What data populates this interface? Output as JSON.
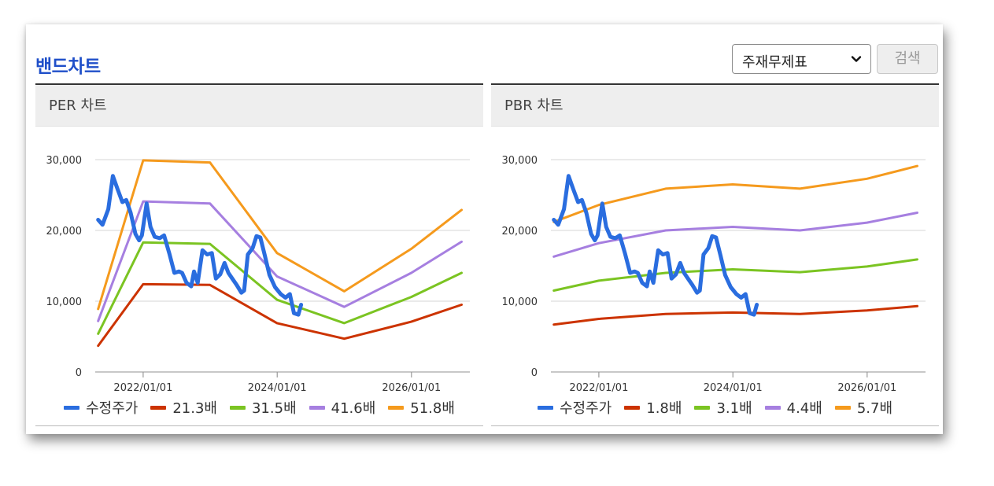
{
  "header": {
    "title": "밴드차트",
    "select_value": "주재무제표",
    "search_label": "검색"
  },
  "colors": {
    "title": "#1f4fc9",
    "price": "#2a6ddf",
    "band1": "#cc3300",
    "band2": "#7bc422",
    "band3": "#a67fe0",
    "band4": "#f59a1d"
  },
  "chart_data": [
    {
      "type": "line",
      "title": "PER 차트",
      "ylim": [
        0,
        30000
      ],
      "yticks": [
        0,
        10000,
        20000,
        30000
      ],
      "ytick_labels": [
        "0",
        "10,000",
        "20,000",
        "30,000"
      ],
      "xlim": [
        "2021-04-15",
        "2026-11-15"
      ],
      "xticks": [
        "2022-01-01",
        "2024-01-01",
        "2026-01-01"
      ],
      "xtick_labels": [
        "2022/01/01",
        "2024/01/01",
        "2026/01/01"
      ],
      "grid": true,
      "legend": "bottom",
      "series": [
        {
          "name": "수정주가",
          "color": "#2a6ddf",
          "width": 5,
          "points": [
            [
              "2021-05-01",
              21500
            ],
            [
              "2021-05-25",
              20800
            ],
            [
              "2021-06-25",
              23000
            ],
            [
              "2021-07-20",
              27700
            ],
            [
              "2021-08-15",
              25800
            ],
            [
              "2021-09-10",
              24000
            ],
            [
              "2021-10-01",
              24300
            ],
            [
              "2021-10-25",
              22500
            ],
            [
              "2021-11-20",
              19500
            ],
            [
              "2021-12-10",
              18600
            ],
            [
              "2021-12-25",
              19300
            ],
            [
              "2022-01-20",
              23800
            ],
            [
              "2022-02-10",
              20500
            ],
            [
              "2022-03-05",
              19100
            ],
            [
              "2022-04-01",
              18900
            ],
            [
              "2022-04-25",
              19300
            ],
            [
              "2022-05-25",
              16600
            ],
            [
              "2022-06-20",
              14000
            ],
            [
              "2022-07-15",
              14200
            ],
            [
              "2022-08-01",
              14000
            ],
            [
              "2022-08-25",
              12600
            ],
            [
              "2022-09-20",
              12100
            ],
            [
              "2022-10-05",
              14200
            ],
            [
              "2022-10-25",
              12600
            ],
            [
              "2022-11-20",
              17200
            ],
            [
              "2022-12-15",
              16600
            ],
            [
              "2023-01-10",
              16800
            ],
            [
              "2023-02-01",
              13200
            ],
            [
              "2023-02-25",
              13800
            ],
            [
              "2023-03-20",
              15400
            ],
            [
              "2023-04-10",
              14000
            ],
            [
              "2023-05-01",
              13200
            ],
            [
              "2023-05-25",
              12300
            ],
            [
              "2023-06-20",
              11200
            ],
            [
              "2023-07-05",
              11500
            ],
            [
              "2023-07-25",
              16600
            ],
            [
              "2023-08-20",
              17500
            ],
            [
              "2023-09-10",
              19200
            ],
            [
              "2023-10-01",
              19000
            ],
            [
              "2023-10-25",
              16500
            ],
            [
              "2023-11-20",
              13700
            ],
            [
              "2023-12-20",
              12000
            ],
            [
              "2024-01-20",
              11000
            ],
            [
              "2024-02-15",
              10500
            ],
            [
              "2024-03-10",
              11000
            ],
            [
              "2024-04-01",
              8300
            ],
            [
              "2024-04-25",
              8100
            ],
            [
              "2024-05-10",
              9500
            ]
          ]
        },
        {
          "name": "21.3배",
          "color": "#cc3300",
          "width": 3,
          "points": [
            [
              "2021-05-01",
              3700
            ],
            [
              "2022-01-01",
              12400
            ],
            [
              "2022-12-31",
              12300
            ],
            [
              "2023-12-31",
              6900
            ],
            [
              "2024-12-31",
              4700
            ],
            [
              "2025-12-31",
              7100
            ],
            [
              "2026-10-01",
              9500
            ]
          ]
        },
        {
          "name": "31.5배",
          "color": "#7bc422",
          "width": 3,
          "points": [
            [
              "2021-05-01",
              5400
            ],
            [
              "2022-01-01",
              18300
            ],
            [
              "2022-12-31",
              18100
            ],
            [
              "2023-12-31",
              10200
            ],
            [
              "2024-12-31",
              6900
            ],
            [
              "2025-12-31",
              10600
            ],
            [
              "2026-10-01",
              14000
            ]
          ]
        },
        {
          "name": "41.6배",
          "color": "#a67fe0",
          "width": 3,
          "points": [
            [
              "2021-05-01",
              7200
            ],
            [
              "2022-01-01",
              24100
            ],
            [
              "2022-12-31",
              23800
            ],
            [
              "2023-12-31",
              13500
            ],
            [
              "2024-12-31",
              9200
            ],
            [
              "2025-12-31",
              14000
            ],
            [
              "2026-10-01",
              18400
            ]
          ]
        },
        {
          "name": "51.8배",
          "color": "#f59a1d",
          "width": 3,
          "points": [
            [
              "2021-05-01",
              8900
            ],
            [
              "2022-01-01",
              29900
            ],
            [
              "2022-12-31",
              29600
            ],
            [
              "2023-12-31",
              16800
            ],
            [
              "2024-12-31",
              11400
            ],
            [
              "2025-12-31",
              17400
            ],
            [
              "2026-10-01",
              22900
            ]
          ]
        }
      ]
    },
    {
      "type": "line",
      "title": "PBR 차트",
      "ylim": [
        0,
        30000
      ],
      "yticks": [
        0,
        10000,
        20000,
        30000
      ],
      "ytick_labels": [
        "0",
        "10,000",
        "20,000",
        "30,000"
      ],
      "xlim": [
        "2021-04-15",
        "2026-11-15"
      ],
      "xticks": [
        "2022-01-01",
        "2024-01-01",
        "2026-01-01"
      ],
      "xtick_labels": [
        "2022/01/01",
        "2024/01/01",
        "2026/01/01"
      ],
      "grid": true,
      "legend": "bottom",
      "series": [
        {
          "name": "수정주가",
          "color": "#2a6ddf",
          "width": 5,
          "points": [
            [
              "2021-05-01",
              21500
            ],
            [
              "2021-05-25",
              20800
            ],
            [
              "2021-06-25",
              23000
            ],
            [
              "2021-07-20",
              27700
            ],
            [
              "2021-08-15",
              25800
            ],
            [
              "2021-09-10",
              24000
            ],
            [
              "2021-10-01",
              24300
            ],
            [
              "2021-10-25",
              22500
            ],
            [
              "2021-11-20",
              19500
            ],
            [
              "2021-12-10",
              18600
            ],
            [
              "2021-12-25",
              19300
            ],
            [
              "2022-01-20",
              23800
            ],
            [
              "2022-02-10",
              20500
            ],
            [
              "2022-03-05",
              19100
            ],
            [
              "2022-04-01",
              18900
            ],
            [
              "2022-04-25",
              19300
            ],
            [
              "2022-05-25",
              16600
            ],
            [
              "2022-06-20",
              14000
            ],
            [
              "2022-07-15",
              14200
            ],
            [
              "2022-08-01",
              14000
            ],
            [
              "2022-08-25",
              12600
            ],
            [
              "2022-09-20",
              12100
            ],
            [
              "2022-10-05",
              14200
            ],
            [
              "2022-10-25",
              12600
            ],
            [
              "2022-11-20",
              17200
            ],
            [
              "2022-12-15",
              16600
            ],
            [
              "2023-01-10",
              16800
            ],
            [
              "2023-02-01",
              13200
            ],
            [
              "2023-02-25",
              13800
            ],
            [
              "2023-03-20",
              15400
            ],
            [
              "2023-04-10",
              14000
            ],
            [
              "2023-05-01",
              13200
            ],
            [
              "2023-05-25",
              12300
            ],
            [
              "2023-06-20",
              11200
            ],
            [
              "2023-07-05",
              11500
            ],
            [
              "2023-07-25",
              16600
            ],
            [
              "2023-08-20",
              17500
            ],
            [
              "2023-09-10",
              19200
            ],
            [
              "2023-10-01",
              19000
            ],
            [
              "2023-10-25",
              16500
            ],
            [
              "2023-11-20",
              13700
            ],
            [
              "2023-12-20",
              12000
            ],
            [
              "2024-01-20",
              11000
            ],
            [
              "2024-02-15",
              10500
            ],
            [
              "2024-03-10",
              11000
            ],
            [
              "2024-04-01",
              8300
            ],
            [
              "2024-04-25",
              8100
            ],
            [
              "2024-05-10",
              9500
            ]
          ]
        },
        {
          "name": "1.8배",
          "color": "#cc3300",
          "width": 3,
          "points": [
            [
              "2021-05-01",
              6700
            ],
            [
              "2022-01-01",
              7500
            ],
            [
              "2022-12-31",
              8200
            ],
            [
              "2023-12-31",
              8400
            ],
            [
              "2024-12-31",
              8200
            ],
            [
              "2025-12-31",
              8700
            ],
            [
              "2026-10-01",
              9300
            ]
          ]
        },
        {
          "name": "3.1배",
          "color": "#7bc422",
          "width": 3,
          "points": [
            [
              "2021-05-01",
              11500
            ],
            [
              "2022-01-01",
              12900
            ],
            [
              "2022-12-31",
              14000
            ],
            [
              "2023-12-31",
              14500
            ],
            [
              "2024-12-31",
              14100
            ],
            [
              "2025-12-31",
              14900
            ],
            [
              "2026-10-01",
              15900
            ]
          ]
        },
        {
          "name": "4.4배",
          "color": "#a67fe0",
          "width": 3,
          "points": [
            [
              "2021-05-01",
              16300
            ],
            [
              "2022-01-01",
              18200
            ],
            [
              "2022-12-31",
              20000
            ],
            [
              "2023-12-31",
              20500
            ],
            [
              "2024-12-31",
              20000
            ],
            [
              "2025-12-31",
              21100
            ],
            [
              "2026-10-01",
              22500
            ]
          ]
        },
        {
          "name": "5.7배",
          "color": "#f59a1d",
          "width": 3,
          "points": [
            [
              "2021-05-01",
              21200
            ],
            [
              "2022-01-01",
              23600
            ],
            [
              "2022-12-31",
              25900
            ],
            [
              "2023-12-31",
              26500
            ],
            [
              "2024-12-31",
              25900
            ],
            [
              "2025-12-31",
              27300
            ],
            [
              "2026-10-01",
              29100
            ]
          ]
        }
      ]
    }
  ]
}
